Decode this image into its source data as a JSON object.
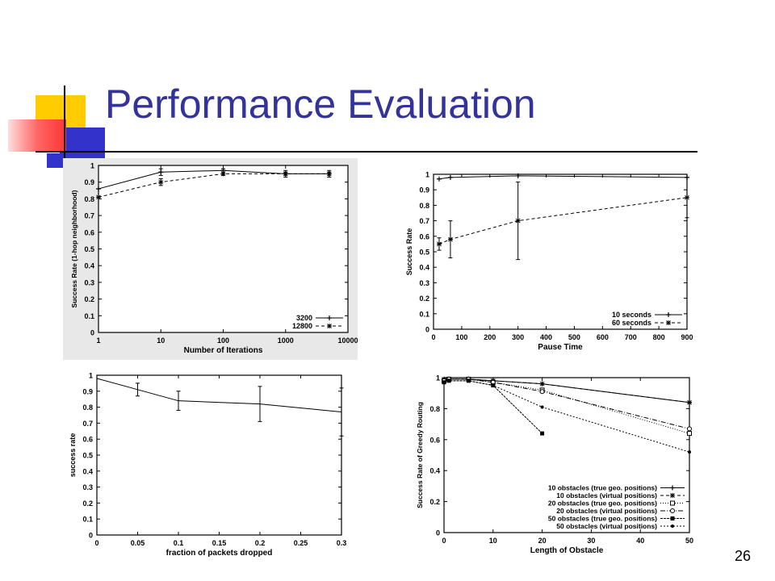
{
  "slide": {
    "title": "Performance Evaluation",
    "page_number": "26",
    "colors": {
      "title": "#333399",
      "deco_yellow": "#ffcc00",
      "deco_blue": "#3333cc",
      "deco_red": "#ff3333"
    }
  },
  "chart_data": [
    {
      "type": "line",
      "xscale": "log",
      "xlabel": "Number of Iterations",
      "ylabel": "Success Rate (1-hop neighborhood)",
      "xlim": [
        1,
        10000
      ],
      "ylim": [
        0,
        1
      ],
      "xticks": [
        "1",
        "10",
        "100",
        "1000",
        "10000"
      ],
      "yticks": [
        "0",
        "0.1",
        "0.2",
        "0.3",
        "0.4",
        "0.5",
        "0.6",
        "0.7",
        "0.8",
        "0.9",
        "1"
      ],
      "legend_position": "bottom-right",
      "series": [
        {
          "name": "3200",
          "x": [
            1,
            10,
            100,
            1000,
            5000
          ],
          "y": [
            0.86,
            0.96,
            0.97,
            0.95,
            0.95
          ],
          "err": [
            0,
            0.02,
            0.01,
            0.02,
            0.02
          ]
        },
        {
          "name": "12800",
          "x": [
            1,
            10,
            100,
            1000,
            5000
          ],
          "y": [
            0.81,
            0.9,
            0.95,
            0.95,
            0.95
          ],
          "err": [
            0,
            0.02,
            0.01,
            0.01,
            0.01
          ]
        }
      ]
    },
    {
      "type": "line",
      "xlabel": "Pause Time",
      "ylabel": "Success Rate",
      "xlim": [
        0,
        900
      ],
      "ylim": [
        0,
        1
      ],
      "xticks": [
        "0",
        "100",
        "200",
        "300",
        "400",
        "500",
        "600",
        "700",
        "800",
        "900"
      ],
      "yticks": [
        "0",
        "0.1",
        "0.2",
        "0.3",
        "0.4",
        "0.5",
        "0.6",
        "0.7",
        "0.8",
        "0.9",
        "1"
      ],
      "legend_position": "bottom-right",
      "series": [
        {
          "name": "10 seconds",
          "x": [
            20,
            60,
            300,
            900
          ],
          "y": [
            0.97,
            0.98,
            0.99,
            0.98
          ],
          "err": [
            0,
            0,
            0,
            0
          ]
        },
        {
          "name": "60 seconds",
          "x": [
            20,
            60,
            300,
            900
          ],
          "y": [
            0.55,
            0.58,
            0.7,
            0.85
          ],
          "err": [
            0.04,
            0.12,
            0.25,
            0.13
          ]
        }
      ]
    },
    {
      "type": "line",
      "xlabel": "fraction of packets dropped",
      "ylabel": "success rate",
      "xlim": [
        0,
        0.3
      ],
      "ylim": [
        0,
        1
      ],
      "xticks": [
        "0",
        "0.05",
        "0.1",
        "0.15",
        "0.2",
        "0.25",
        "0.3"
      ],
      "yticks": [
        "0",
        "0.1",
        "0.2",
        "0.3",
        "0.4",
        "0.5",
        "0.6",
        "0.7",
        "0.8",
        "0.9",
        "1"
      ],
      "series": [
        {
          "name": "",
          "x": [
            0,
            0.05,
            0.1,
            0.2,
            0.3
          ],
          "y": [
            0.98,
            0.91,
            0.84,
            0.82,
            0.77
          ],
          "err": [
            0,
            0.04,
            0.06,
            0.11,
            0.15
          ]
        }
      ]
    },
    {
      "type": "line",
      "xlabel": "Length of Obstacle",
      "ylabel": "Success Rate of Greedy Routing",
      "xlim": [
        0,
        50
      ],
      "ylim": [
        0,
        1
      ],
      "xticks": [
        "0",
        "10",
        "20",
        "30",
        "40",
        "50"
      ],
      "yticks": [
        "0",
        "0.2",
        "0.4",
        "0.6",
        "0.8",
        "1"
      ],
      "legend_position": "bottom-right",
      "series": [
        {
          "name": "10 obstacles (true geo. positions)",
          "x": [
            0,
            1,
            5,
            10,
            20,
            50
          ],
          "y": [
            0.99,
            0.99,
            0.99,
            0.98,
            0.96,
            0.84
          ]
        },
        {
          "name": "10 obstacles (virtual positions)",
          "x": [
            0,
            1,
            5,
            10,
            20,
            50
          ],
          "y": [
            0.99,
            0.99,
            0.99,
            0.98,
            0.96,
            0.84
          ]
        },
        {
          "name": "20 obstacles (true geo. positions)",
          "x": [
            0,
            1,
            5,
            10,
            20,
            50
          ],
          "y": [
            0.98,
            0.99,
            0.99,
            0.97,
            0.92,
            0.64
          ]
        },
        {
          "name": "20 obstacles (virtual positions)",
          "x": [
            0,
            1,
            5,
            10,
            20,
            50
          ],
          "y": [
            0.98,
            0.99,
            0.99,
            0.97,
            0.91,
            0.67
          ]
        },
        {
          "name": "50 obstacles (true geo. positions)",
          "x": [
            0,
            1,
            5,
            10,
            20
          ],
          "y": [
            0.97,
            0.98,
            0.98,
            0.95,
            0.64
          ]
        },
        {
          "name": "50 obstacles (virtual positions)",
          "x": [
            0,
            1,
            5,
            10,
            20,
            50
          ],
          "y": [
            0.97,
            0.98,
            0.98,
            0.95,
            0.81,
            0.52
          ]
        }
      ]
    }
  ]
}
